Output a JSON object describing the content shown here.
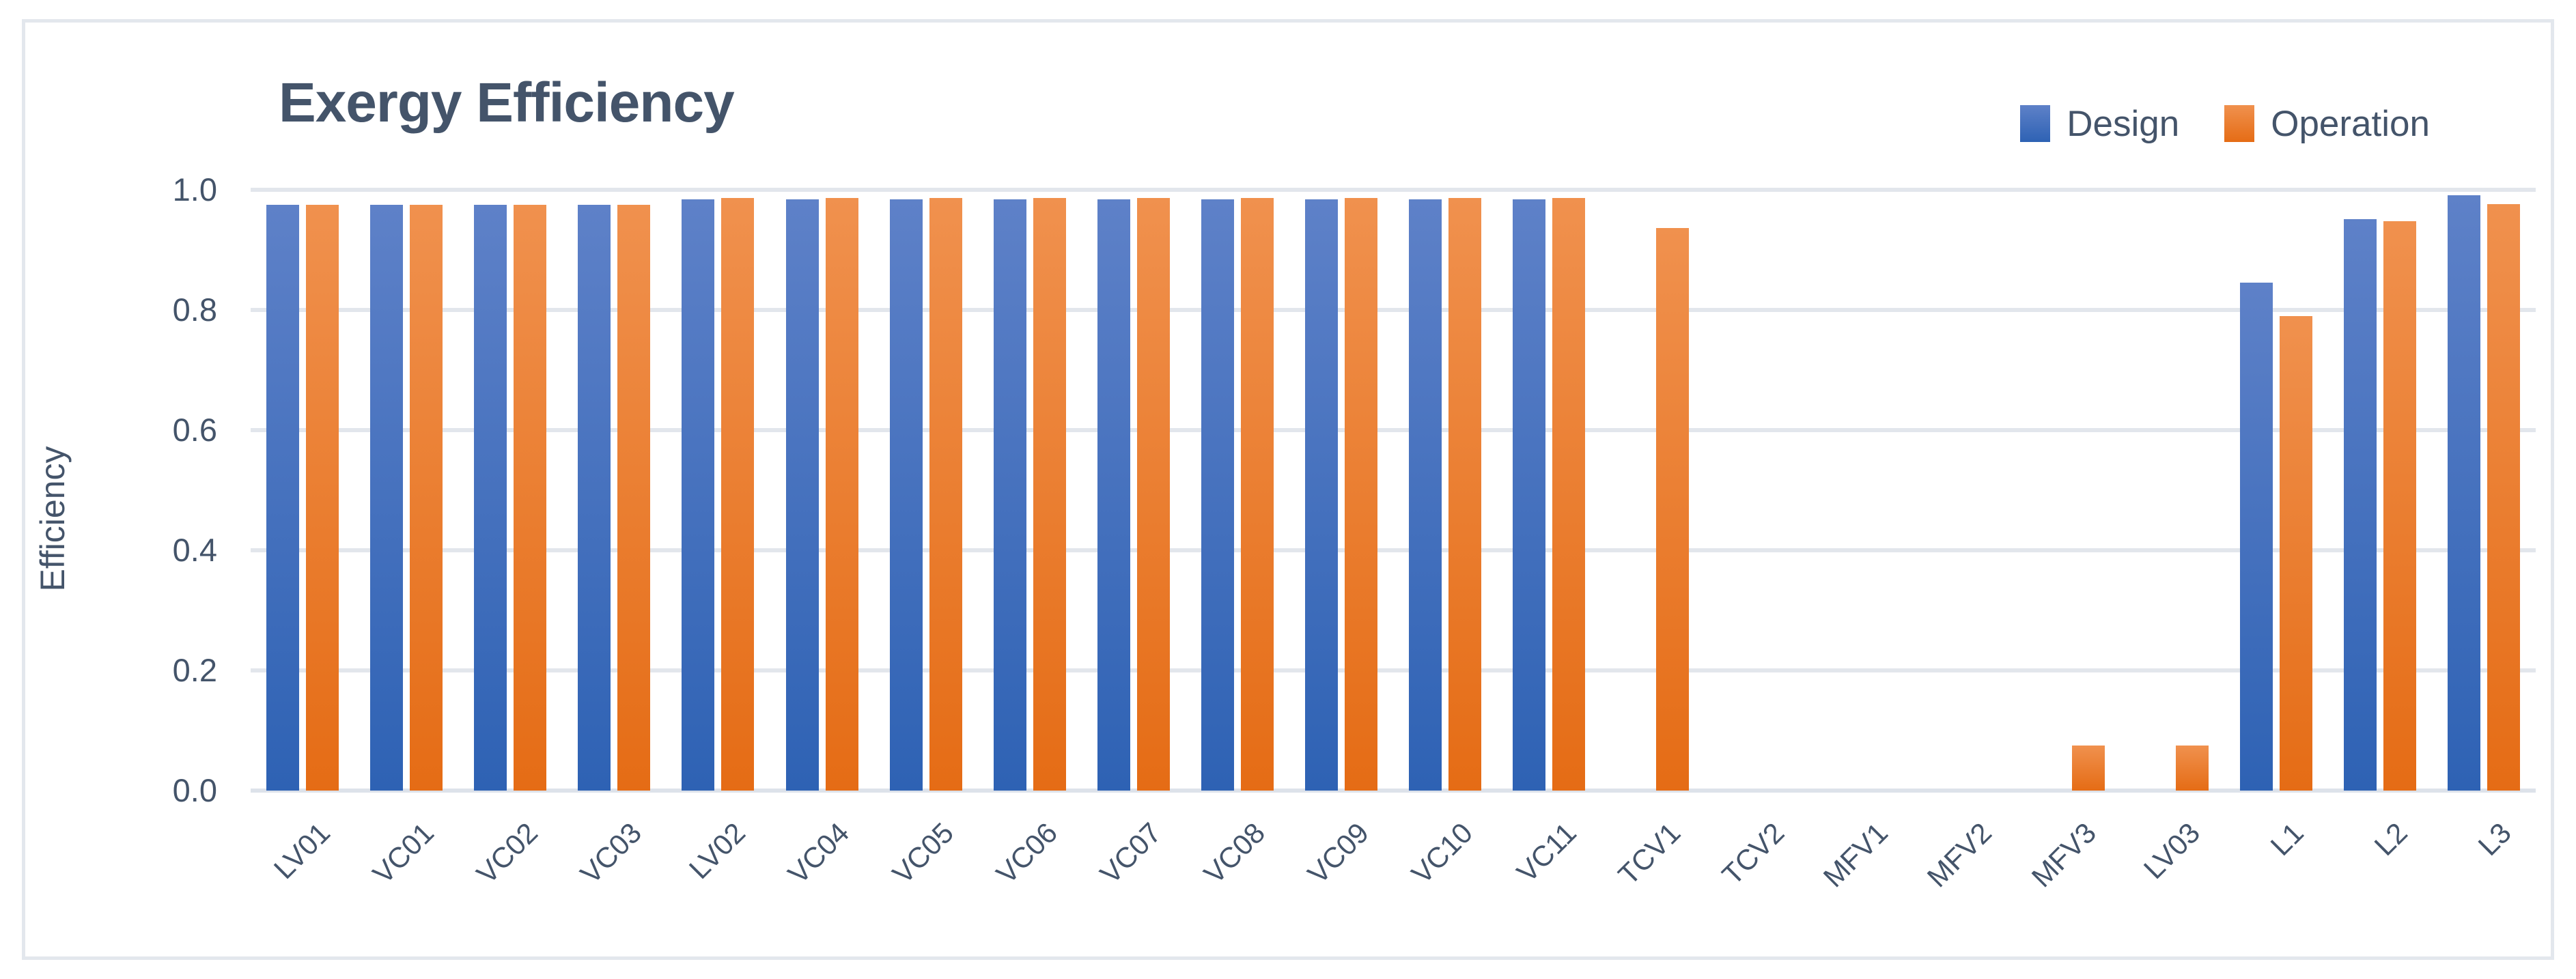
{
  "chart_data": {
    "type": "bar",
    "title": "Exergy Efficiency",
    "xlabel": "",
    "ylabel": "Efficiency",
    "categories": [
      "LV01",
      "VC01",
      "VC02",
      "VC03",
      "LV02",
      "VC04",
      "VC05",
      "VC06",
      "VC07",
      "VC08",
      "VC09",
      "VC10",
      "VC11",
      "TCV1",
      "TCV2",
      "MFV1",
      "MFV2",
      "MFV3",
      "LV03",
      "L1",
      "L2",
      "L3"
    ],
    "series": [
      {
        "name": "Design",
        "color_top": "#5E81C8",
        "color_bottom": "#2E62B4",
        "values": [
          0.975,
          0.975,
          0.975,
          0.975,
          0.984,
          0.984,
          0.984,
          0.984,
          0.984,
          0.984,
          0.984,
          0.984,
          0.984,
          0,
          0,
          0,
          0,
          0,
          0,
          0.845,
          0.951,
          0.991
        ]
      },
      {
        "name": "Operation",
        "color_top": "#F0914E",
        "color_bottom": "#E56C15",
        "values": [
          0.975,
          0.975,
          0.975,
          0.975,
          0.986,
          0.986,
          0.986,
          0.986,
          0.986,
          0.986,
          0.986,
          0.986,
          0.986,
          0.936,
          0,
          0,
          0,
          0.075,
          0.075,
          0.79,
          0.948,
          0.976
        ]
      }
    ],
    "ylim": [
      0.0,
      1.0
    ],
    "yticks": [
      {
        "label": "0.0",
        "value": 0.0
      },
      {
        "label": "0.2",
        "value": 0.2
      },
      {
        "label": "0.4",
        "value": 0.4
      },
      {
        "label": "0.6",
        "value": 0.6
      },
      {
        "label": "0.8",
        "value": 0.8
      },
      {
        "label": "1.0",
        "value": 1.0
      }
    ],
    "grid": true,
    "legend_position": "top-right",
    "text_color": "#44546A",
    "grid_color": "#E2E6EC",
    "axis_line_color": "#DDE2EA"
  }
}
